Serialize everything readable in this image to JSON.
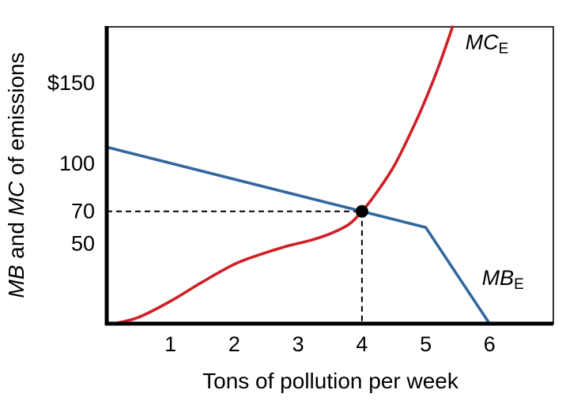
{
  "chart_data": {
    "type": "line",
    "title": "",
    "xlabel": "Tons of pollution per week",
    "ylabel": "MB and MC of emissions",
    "ylabel_parts": [
      {
        "text": "MB",
        "italic": true
      },
      {
        "text": " and ",
        "italic": false
      },
      {
        "text": "MC",
        "italic": true
      },
      {
        "text": " of emissions",
        "italic": false
      }
    ],
    "xlim": [
      0,
      7
    ],
    "ylim": [
      0,
      185
    ],
    "grid": false,
    "legend": "inline-labels",
    "axis_color": "#000000",
    "x_ticks": [
      {
        "value": 1,
        "label": "1"
      },
      {
        "value": 2,
        "label": "2"
      },
      {
        "value": 3,
        "label": "3"
      },
      {
        "value": 4,
        "label": "4"
      },
      {
        "value": 5,
        "label": "5"
      },
      {
        "value": 6,
        "label": "6"
      }
    ],
    "y_ticks": [
      {
        "value": 150,
        "label": "$150"
      },
      {
        "value": 100,
        "label": "100"
      },
      {
        "value": 70,
        "label": "70"
      },
      {
        "value": 50,
        "label": "50"
      }
    ],
    "series": [
      {
        "name": "MCE",
        "label_main": "MC",
        "label_sub": "E",
        "color": "#d01f26",
        "smooth": true,
        "label_at": [
          5.62,
          171
        ],
        "points": [
          [
            0.12,
            0
          ],
          [
            0.5,
            4
          ],
          [
            1.0,
            14
          ],
          [
            1.5,
            26
          ],
          [
            2.0,
            37
          ],
          [
            2.4,
            43
          ],
          [
            2.8,
            48
          ],
          [
            3.2,
            52
          ],
          [
            3.5,
            56
          ],
          [
            3.8,
            62
          ],
          [
            4.0,
            70
          ],
          [
            4.2,
            80
          ],
          [
            4.5,
            98
          ],
          [
            4.8,
            122
          ],
          [
            5.0,
            140
          ],
          [
            5.2,
            160
          ],
          [
            5.42,
            185
          ]
        ]
      },
      {
        "name": "MBE",
        "label_main": "MB",
        "label_sub": "E",
        "color": "#33689e",
        "smooth": false,
        "label_at": [
          5.88,
          24
        ],
        "points": [
          [
            0,
            110
          ],
          [
            5,
            60
          ],
          [
            6,
            0
          ]
        ]
      }
    ],
    "equilibrium": {
      "x": 4,
      "y": 70,
      "price_label": "70",
      "quantity_label": "4"
    },
    "guides": {
      "dashed": true,
      "color": "#000000"
    }
  }
}
